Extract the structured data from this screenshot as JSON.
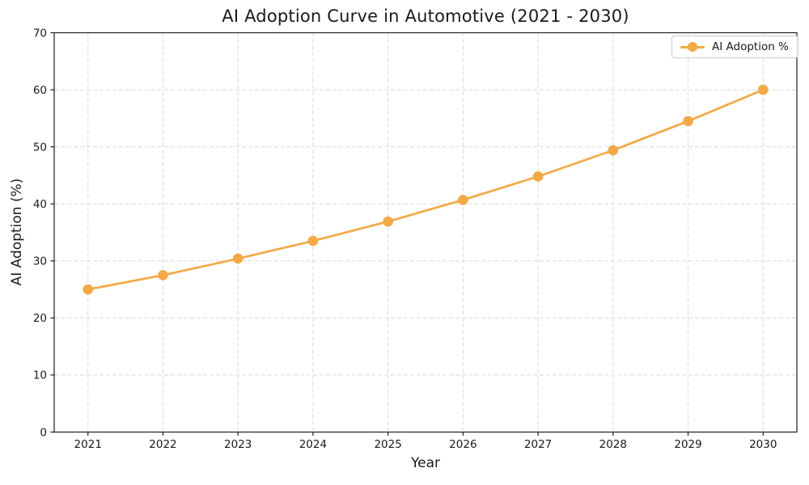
{
  "figure": {
    "background": "#ffffff",
    "text_color": "#1a1a1a",
    "spine_color": "#1f1f1f"
  },
  "chart_data": {
    "type": "line",
    "title": "AI Adoption Curve in Automotive (2021 - 2030)",
    "xlabel": "Year",
    "ylabel": "AI Adoption (%)",
    "categories": [
      "2021",
      "2022",
      "2023",
      "2024",
      "2025",
      "2026",
      "2027",
      "2028",
      "2029",
      "2030"
    ],
    "series": [
      {
        "name": "AI Adoption %",
        "color": "#F4A942",
        "marker": "circle",
        "values": [
          25.0,
          27.5,
          30.4,
          33.5,
          36.9,
          40.7,
          44.8,
          49.4,
          54.5,
          60.0
        ]
      }
    ],
    "ylim": [
      0,
      70
    ],
    "yticks": [
      0,
      10,
      20,
      30,
      40,
      50,
      60,
      70
    ],
    "grid": true,
    "grid_style": "dashed",
    "grid_color": "#d3d3d3",
    "legend_position": "upper right"
  }
}
